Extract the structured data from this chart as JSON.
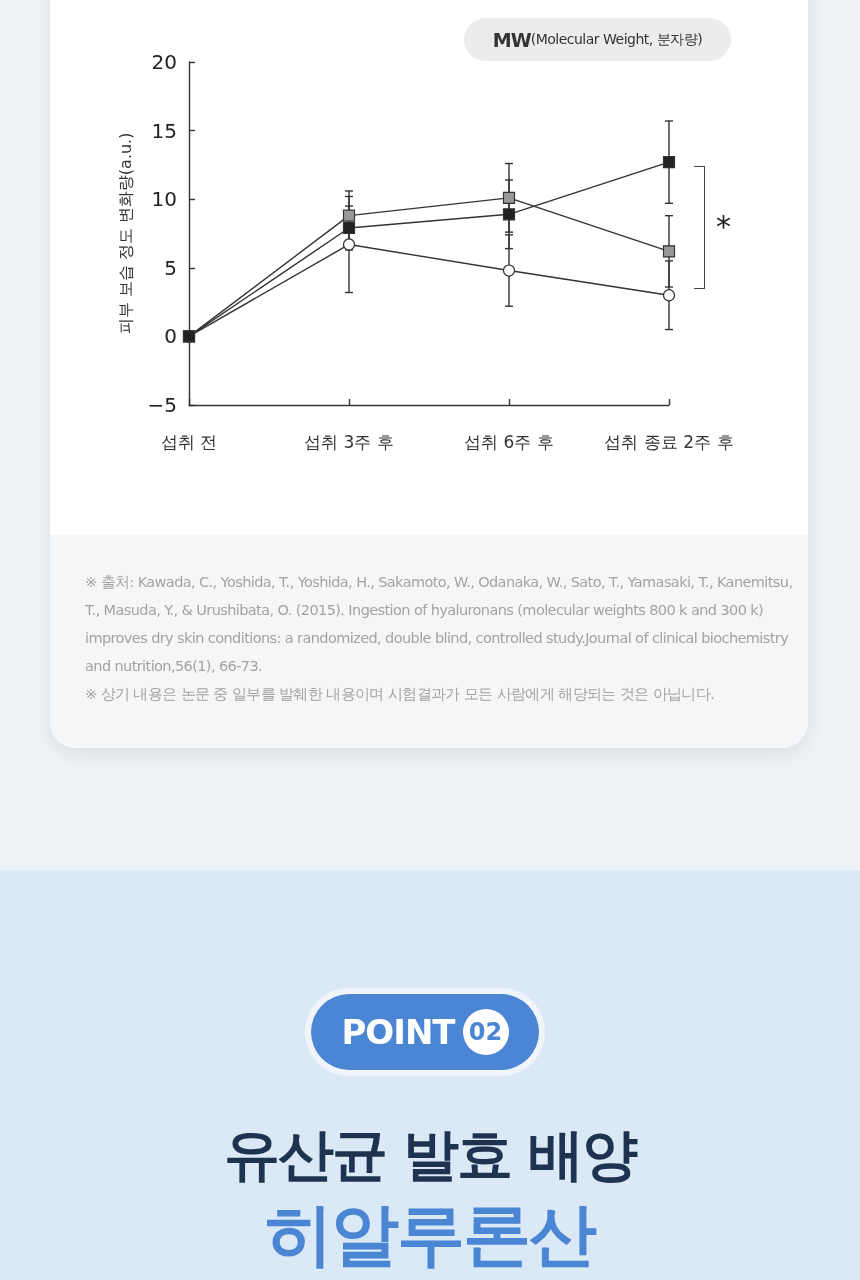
{
  "chart_data": {
    "type": "line",
    "categories": [
      "섭취 전",
      "섭취 3주 후",
      "섭취 6주 후",
      "섭취 종료 2주 후"
    ],
    "ylabel": "피부 보습 정도 변화량(a.u.)",
    "ylim": [
      -5,
      20
    ],
    "yticks": [
      {
        "value": -5,
        "label": "−5"
      },
      0,
      5,
      10,
      15,
      20
    ],
    "line_style": "solid",
    "series": [
      {
        "color": "#ffffff",
        "marker": "circle",
        "values": [
          0,
          6.7,
          4.8,
          3.0
        ],
        "errors": [
          null,
          3.5,
          2.6,
          2.5
        ]
      },
      {
        "color": "#999999",
        "marker": "square",
        "values": [
          0,
          8.8,
          10.1,
          6.2
        ],
        "errors": [
          null,
          1.8,
          2.5,
          2.6
        ]
      },
      {
        "color": "#222222",
        "marker": "square",
        "values": [
          0,
          7.9,
          8.9,
          12.7
        ],
        "errors": [
          null,
          1.6,
          2.5,
          3.0
        ]
      }
    ],
    "annotations": [
      "MW(Molecular Weight, 분자량)",
      "*",
      "※ 출처: Kawada, C., Yoshida, T., Yoshida, H., Sakamoto, W., Odanaka, W., Sato, T., Yamasaki, T., Kanemitsu, T., Masuda, Y., & Urushibata, O. (2015). Ingestion of hyaluronans (molecular weights 800 k and 300 k) improves dry skin conditions: a randomized, double blind, controlled study.Journal of clinical biochemistry and nutrition,56(1), 66-73.",
      "※ 상기 내용은 논문 중 일부를 발췌한 내용이며 시험결과가 모든 사람에게 해당되는 것은 아닙니다.",
      "POINT 02",
      "유산균 발효 배양",
      "히알루론산"
    ]
  }
}
